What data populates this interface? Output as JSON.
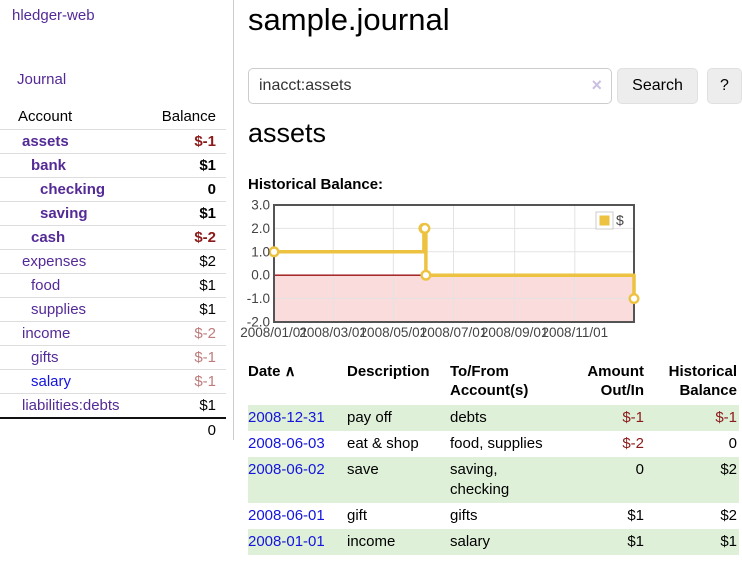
{
  "app": {
    "brand": "hledger-web",
    "nav_journal": "Journal"
  },
  "colors": {
    "link_purple": "#542a96",
    "link_blue": "#1414dd",
    "negative_strong": "#8b1a1a",
    "negative_soft": "#bf7c7c",
    "row_highlight": "#dff0d8",
    "chart_gold": "#edc240",
    "chart_axis_text": "#444444",
    "chart_border": "#545454",
    "chart_grid": "#e3e3e3",
    "chart_negative_fill": "#fbdcdc",
    "chart_zero_line": "#9c0f0f",
    "clear_icon_color": "#cbc0e2"
  },
  "sidebar": {
    "header": {
      "account": "Account",
      "balance": "Balance"
    },
    "accounts": [
      {
        "name": "assets",
        "depth": 1,
        "bold": true,
        "balance": "$-1",
        "negative": "strong"
      },
      {
        "name": "bank",
        "depth": 2,
        "bold": true,
        "balance": "$1"
      },
      {
        "name": "checking",
        "depth": 3,
        "bold": true,
        "balance": "0"
      },
      {
        "name": "saving",
        "depth": 3,
        "bold": true,
        "balance": "$1"
      },
      {
        "name": "cash",
        "depth": 2,
        "bold": true,
        "balance": "$-2",
        "negative": "strong"
      },
      {
        "name": "expenses",
        "depth": 1,
        "bold": false,
        "balance": "$2"
      },
      {
        "name": "food",
        "depth": 2,
        "bold": false,
        "balance": "$1"
      },
      {
        "name": "supplies",
        "depth": 2,
        "bold": false,
        "balance": "$1"
      },
      {
        "name": "income",
        "depth": 1,
        "bold": false,
        "balance": "$-2",
        "negative": "soft"
      },
      {
        "name": "gifts",
        "depth": 2,
        "bold": false,
        "balance": "$-1",
        "negative": "soft"
      },
      {
        "name": "salary",
        "depth": 2,
        "bold": false,
        "balance": "$-1",
        "negative": "soft",
        "link": "blue"
      },
      {
        "name": "liabilities:debts",
        "depth": 1,
        "bold": false,
        "balance": "$1"
      }
    ],
    "total": "0"
  },
  "header": {
    "title": "sample.journal"
  },
  "search": {
    "value": "inacct:assets",
    "clear_icon": "×",
    "button": "Search",
    "help": "?"
  },
  "register": {
    "heading": "assets",
    "chart_label": "Historical Balance:",
    "table": {
      "headers": [
        {
          "lines": [
            "Date"
          ],
          "align": "left",
          "sort_icon": "∧"
        },
        {
          "lines": [
            "Description"
          ],
          "align": "left"
        },
        {
          "lines": [
            "To/From",
            "Account(s)"
          ],
          "align": "left"
        },
        {
          "lines": [
            "Amount",
            "Out/In"
          ],
          "align": "right"
        },
        {
          "lines": [
            "Historical",
            "Balance"
          ],
          "align": "right"
        }
      ],
      "rows": [
        {
          "date": "2008-12-31",
          "description": "pay off",
          "accounts": "debts",
          "amount": "$-1",
          "amount_neg": true,
          "balance": "$-1",
          "balance_neg": true,
          "highlight": true
        },
        {
          "date": "2008-06-03",
          "description": "eat & shop",
          "accounts": "food, supplies",
          "amount": "$-2",
          "amount_neg": true,
          "balance": "0",
          "balance_neg": false,
          "highlight": false
        },
        {
          "date": "2008-06-02",
          "description": "save",
          "accounts": "saving, checking",
          "amount": "0",
          "amount_neg": false,
          "balance": "$2",
          "balance_neg": false,
          "highlight": true
        },
        {
          "date": "2008-06-01",
          "description": "gift",
          "accounts": "gifts",
          "amount": "$1",
          "amount_neg": false,
          "balance": "$2",
          "balance_neg": false,
          "highlight": false
        },
        {
          "date": "2008-01-01",
          "description": "income",
          "accounts": "salary",
          "amount": "$1",
          "amount_neg": false,
          "balance": "$1",
          "balance_neg": false,
          "highlight": true
        }
      ]
    }
  },
  "chart_data": {
    "type": "line",
    "title": "Historical Balance",
    "step": true,
    "series": [
      {
        "name": "$",
        "color": "#edc240",
        "points": [
          {
            "date": "2008-01-01",
            "value": 1
          },
          {
            "date": "2008-06-01",
            "value": 2
          },
          {
            "date": "2008-06-02",
            "value": 2
          },
          {
            "date": "2008-06-03",
            "value": 0
          },
          {
            "date": "2008-12-31",
            "value": -1
          }
        ]
      }
    ],
    "x_range": [
      "2008-01-01",
      "2008-12-31"
    ],
    "x_tick_labels": [
      "2008/01/01",
      "2008/03/01",
      "2008/05/01",
      "2008/07/01",
      "2008/09/01",
      "2008/11/01"
    ],
    "y_ticks": [
      3.0,
      2.0,
      1.0,
      0.0,
      -1.0,
      -2.0
    ],
    "y_tick_labels": [
      "3.0",
      "2.0",
      "1.0",
      "0.0",
      "-1.0",
      "-2.0"
    ],
    "ylim": [
      -2,
      3
    ],
    "grid": true,
    "legend": {
      "label": "$",
      "position": "top-right"
    },
    "negative_region_shaded": true
  }
}
